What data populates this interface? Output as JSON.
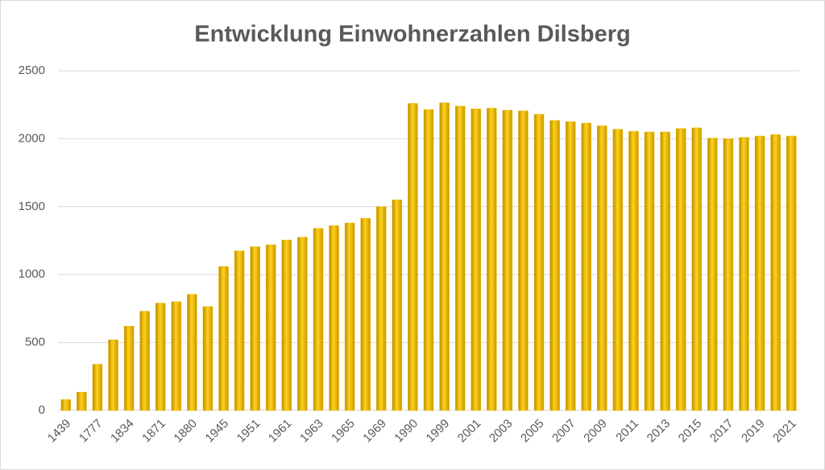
{
  "chart_data": {
    "type": "bar",
    "title": "Entwicklung Einwohnerzahlen Dilsberg",
    "categories": [
      "1439",
      null,
      "1777",
      null,
      "1834",
      null,
      "1871",
      null,
      "1880",
      null,
      "1945",
      null,
      "1951",
      null,
      "1961",
      null,
      "1963",
      null,
      "1965",
      null,
      "1969",
      null,
      "1990",
      null,
      "1999",
      null,
      "2001",
      null,
      "2003",
      null,
      "2005",
      null,
      "2007",
      null,
      "2009",
      null,
      "2011",
      null,
      "2013",
      null,
      "2015",
      null,
      "2017",
      null,
      "2019",
      null,
      "2021"
    ],
    "values": [
      80,
      135,
      340,
      520,
      620,
      730,
      790,
      800,
      855,
      765,
      1060,
      1175,
      1205,
      1220,
      1255,
      1275,
      1340,
      1360,
      1380,
      1415,
      1500,
      1550,
      2260,
      2215,
      2265,
      2240,
      2220,
      2225,
      2210,
      2205,
      2180,
      2135,
      2125,
      2115,
      2095,
      2070,
      2055,
      2050,
      2050,
      2075,
      2080,
      2005,
      2000,
      2010,
      2020,
      2030,
      2020
    ],
    "color": "#f2b800",
    "ylim": [
      0,
      2500
    ],
    "yticks": [
      0,
      500,
      1000,
      1500,
      2000,
      2500
    ],
    "grid": true
  }
}
